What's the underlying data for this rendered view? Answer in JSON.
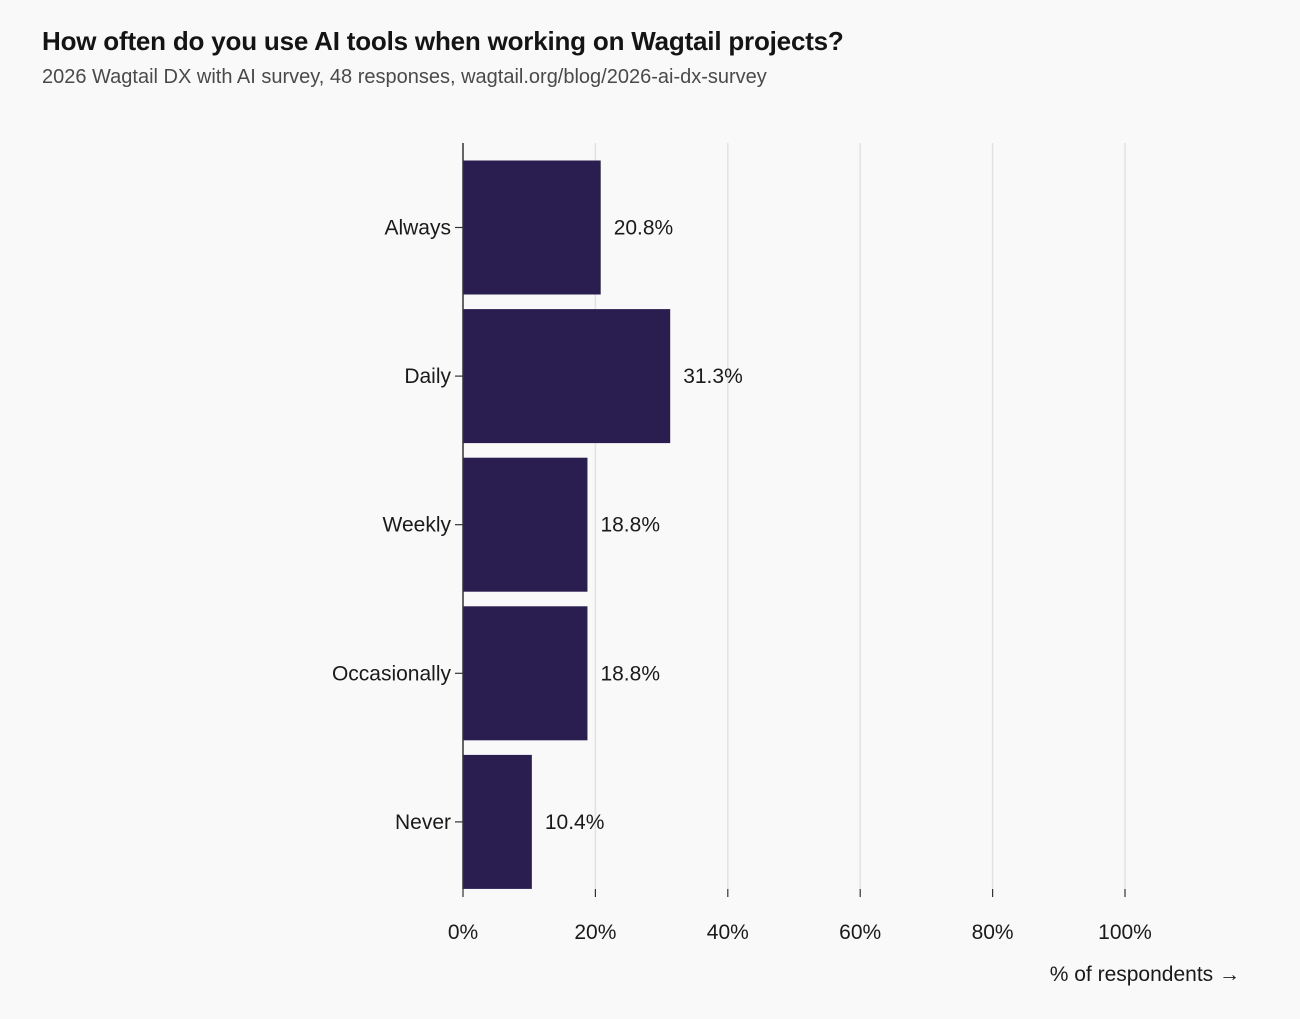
{
  "chart_data": {
    "type": "bar",
    "orientation": "horizontal",
    "title": "How often do you use AI tools when working on Wagtail projects?",
    "subtitle": "2026 Wagtail DX with AI survey, 48 responses, wagtail.org/blog/2026-ai-dx-survey",
    "categories": [
      "Always",
      "Daily",
      "Weekly",
      "Occasionally",
      "Never"
    ],
    "values": [
      20.8,
      31.3,
      18.8,
      18.8,
      10.4
    ],
    "value_labels": [
      "20.8%",
      "31.3%",
      "18.8%",
      "18.8%",
      "10.4%"
    ],
    "xlabel": "% of respondents →",
    "xlim": [
      0,
      100
    ],
    "xticks": [
      0,
      20,
      40,
      60,
      80,
      100
    ],
    "xtick_labels": [
      "0%",
      "20%",
      "40%",
      "60%",
      "80%",
      "100%"
    ],
    "grid": "vertical",
    "legend": "none",
    "colors": {
      "bar": "#2a1d4f",
      "grid": "#e2e2e2",
      "axis": "#333333",
      "background": "#f9f9f9"
    }
  }
}
